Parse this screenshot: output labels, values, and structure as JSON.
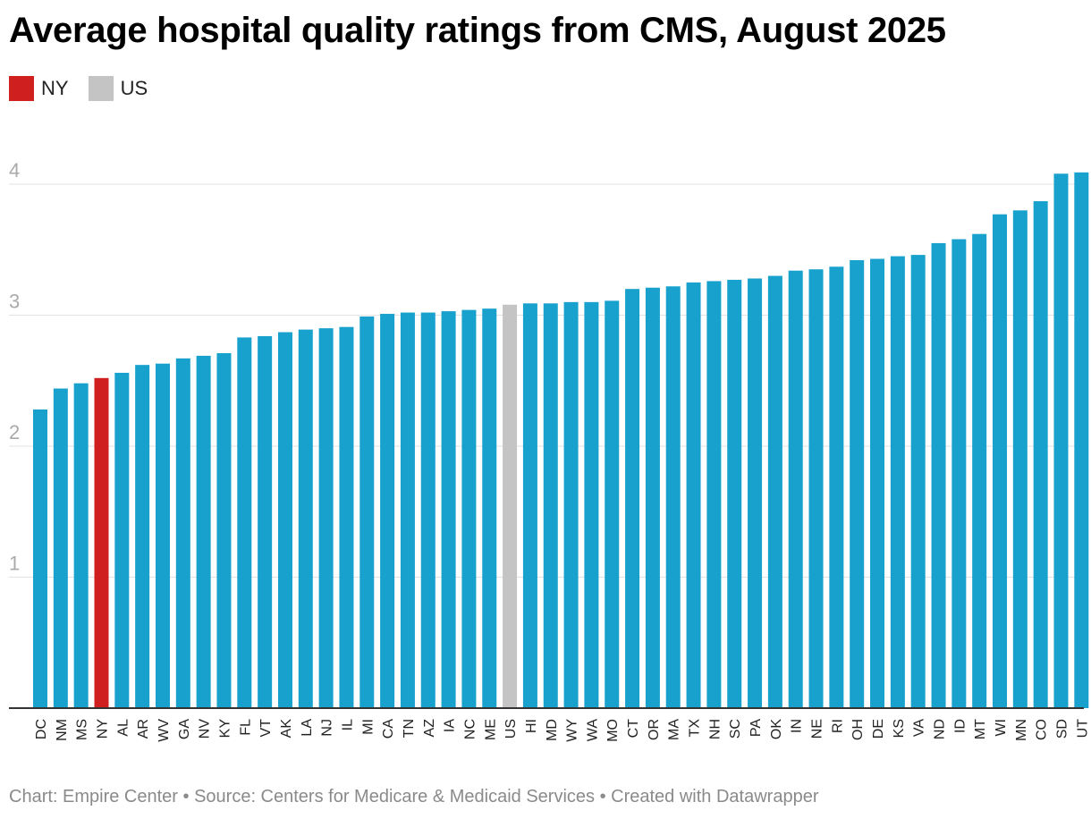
{
  "header": {
    "title": "Average hospital quality ratings from CMS, August 2025"
  },
  "legend": [
    {
      "label": "NY",
      "color": "#d01f1f"
    },
    {
      "label": "US",
      "color": "#c4c4c4"
    }
  ],
  "footer": {
    "text": "Chart: Empire Center • Source: Centers for Medicare & Medicaid Services • Created with Datawrapper"
  },
  "colors": {
    "default_bar": "#18a1cd",
    "highlight_ny": "#d01f1f",
    "highlight_us": "#c4c4c4",
    "grid": "#e2e2e2",
    "axis": "#333333"
  },
  "chart_data": {
    "type": "bar",
    "title": "Average hospital quality ratings from CMS, August 2025",
    "xlabel": "",
    "ylabel": "",
    "ylim": [
      0,
      4.2
    ],
    "yticks": [
      1,
      2,
      3,
      4
    ],
    "grid": true,
    "legend_position": "top-left",
    "categories": [
      "DC",
      "NM",
      "MS",
      "NY",
      "AL",
      "AR",
      "WV",
      "GA",
      "NV",
      "KY",
      "FL",
      "VT",
      "AK",
      "LA",
      "NJ",
      "IL",
      "MI",
      "CA",
      "TN",
      "AZ",
      "IA",
      "NC",
      "ME",
      "US",
      "HI",
      "MD",
      "WY",
      "WA",
      "MO",
      "CT",
      "OR",
      "MA",
      "TX",
      "NH",
      "SC",
      "PA",
      "OK",
      "IN",
      "NE",
      "RI",
      "OH",
      "DE",
      "KS",
      "VA",
      "ND",
      "ID",
      "MT",
      "WI",
      "MN",
      "CO",
      "SD",
      "UT"
    ],
    "values": [
      2.28,
      2.44,
      2.48,
      2.52,
      2.56,
      2.62,
      2.63,
      2.67,
      2.69,
      2.71,
      2.83,
      2.84,
      2.87,
      2.89,
      2.9,
      2.91,
      2.99,
      3.01,
      3.02,
      3.02,
      3.03,
      3.04,
      3.05,
      3.08,
      3.09,
      3.09,
      3.1,
      3.1,
      3.11,
      3.2,
      3.21,
      3.22,
      3.25,
      3.26,
      3.27,
      3.28,
      3.3,
      3.34,
      3.35,
      3.37,
      3.42,
      3.43,
      3.45,
      3.46,
      3.55,
      3.58,
      3.62,
      3.77,
      3.8,
      3.87,
      4.08,
      4.09
    ],
    "highlight": {
      "NY": "#d01f1f",
      "US": "#c4c4c4"
    }
  }
}
